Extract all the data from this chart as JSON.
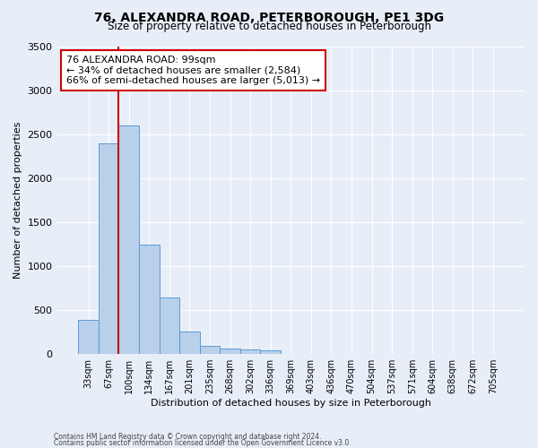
{
  "title1": "76, ALEXANDRA ROAD, PETERBOROUGH, PE1 3DG",
  "title2": "Size of property relative to detached houses in Peterborough",
  "xlabel": "Distribution of detached houses by size in Peterborough",
  "ylabel": "Number of detached properties",
  "footer1": "Contains HM Land Registry data © Crown copyright and database right 2024.",
  "footer2": "Contains public sector information licensed under the Open Government Licence v3.0.",
  "categories": [
    "33sqm",
    "67sqm",
    "100sqm",
    "134sqm",
    "167sqm",
    "201sqm",
    "235sqm",
    "268sqm",
    "302sqm",
    "336sqm",
    "369sqm",
    "403sqm",
    "436sqm",
    "470sqm",
    "504sqm",
    "537sqm",
    "571sqm",
    "604sqm",
    "638sqm",
    "672sqm",
    "705sqm"
  ],
  "bar_values": [
    390,
    2400,
    2600,
    1240,
    640,
    260,
    90,
    60,
    55,
    40,
    0,
    0,
    0,
    0,
    0,
    0,
    0,
    0,
    0,
    0,
    0
  ],
  "bar_color": "#b8d0ea",
  "bar_edge_color": "#5b9bd5",
  "background_color": "#e8eef8",
  "grid_color": "#ffffff",
  "vline_color": "#cc0000",
  "annotation_text": "76 ALEXANDRA ROAD: 99sqm\n← 34% of detached houses are smaller (2,584)\n66% of semi-detached houses are larger (5,013) →",
  "annotation_box_color": "#ffffff",
  "annotation_box_edge": "#cc0000",
  "ylim": [
    0,
    3500
  ],
  "yticks": [
    0,
    500,
    1000,
    1500,
    2000,
    2500,
    3000,
    3500
  ]
}
